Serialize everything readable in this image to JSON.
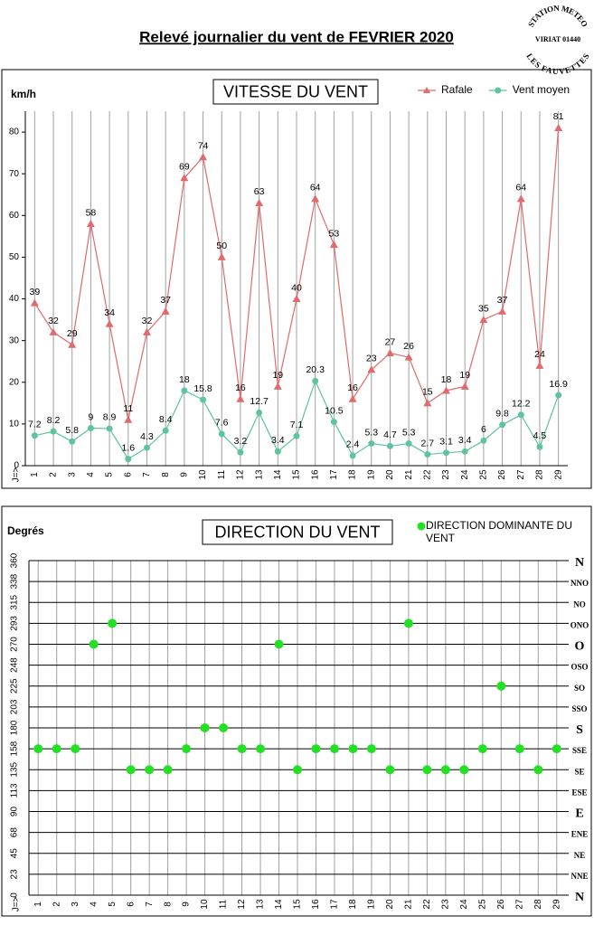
{
  "header": {
    "title": "Relevé journalier du vent de FEVRIER 2020",
    "stamp": [
      "STATION METEO",
      "VIRIAT 01440",
      "LES FAUVETTES"
    ]
  },
  "chart_data": [
    {
      "type": "line",
      "title": "VITESSE DU VENT",
      "ylabel": "km/h",
      "xlabel": "J=>",
      "categories": [
        "1",
        "2",
        "3",
        "4",
        "5",
        "6",
        "7",
        "8",
        "9",
        "10",
        "11",
        "12",
        "13",
        "14",
        "15",
        "16",
        "17",
        "18",
        "19",
        "20",
        "21",
        "22",
        "23",
        "24",
        "25",
        "26",
        "27",
        "28",
        "29"
      ],
      "series": [
        {
          "name": "Rafale",
          "color": "#e06a6c",
          "marker": "triangle",
          "values": [
            39,
            32,
            29,
            58,
            34,
            11,
            32,
            37,
            69,
            74,
            50,
            16,
            63,
            19,
            40,
            64,
            53,
            16,
            23,
            27,
            26,
            15,
            18,
            19,
            35,
            37,
            64,
            24,
            81
          ]
        },
        {
          "name": "Vent moyen",
          "color": "#5ec49c",
          "marker": "circle",
          "values": [
            7.2,
            8.2,
            5.8,
            9,
            8.9,
            1.6,
            4.3,
            8.4,
            18,
            15.8,
            7.6,
            3.2,
            12.7,
            3.4,
            7.1,
            20.3,
            10.5,
            2.4,
            5.3,
            4.7,
            5.3,
            2.7,
            3.1,
            3.4,
            6,
            9.8,
            12.2,
            4.5,
            16.9
          ]
        }
      ],
      "ylim": [
        0,
        85
      ],
      "yticks": [
        0,
        10,
        20,
        30,
        40,
        50,
        60,
        70,
        80
      ],
      "grid": false
    },
    {
      "type": "scatter",
      "title": "DIRECTION DU VENT",
      "ylabel": "Degrés",
      "xlabel": "J=>",
      "categories": [
        "1",
        "2",
        "3",
        "4",
        "5",
        "6",
        "7",
        "8",
        "9",
        "10",
        "11",
        "12",
        "13",
        "14",
        "15",
        "16",
        "17",
        "18",
        "19",
        "20",
        "21",
        "22",
        "23",
        "24",
        "25",
        "26",
        "27",
        "28",
        "29"
      ],
      "series": [
        {
          "name": "DIRECTION DOMINANTE DU VENT",
          "color": "#22e022",
          "values": [
            157.5,
            157.5,
            157.5,
            270,
            292.5,
            135,
            135,
            135,
            157.5,
            180,
            180,
            157.5,
            157.5,
            270,
            135,
            157.5,
            157.5,
            157.5,
            157.5,
            135,
            292.5,
            135,
            135,
            135,
            157.5,
            225,
            157.5,
            135,
            157.5
          ]
        }
      ],
      "ylim": [
        0,
        360
      ],
      "yticks": [
        0,
        {
          "value": 22.5,
          "label": "23"
        },
        45,
        {
          "value": 67.5,
          "label": "68"
        },
        90,
        {
          "value": 112.5,
          "label": "113"
        },
        135,
        {
          "value": 157.5,
          "label": "158"
        },
        180,
        {
          "value": 202.5,
          "label": "203"
        },
        225,
        {
          "value": 247.5,
          "label": "248"
        },
        270,
        {
          "value": 292.5,
          "label": "293"
        },
        315,
        {
          "value": 337.5,
          "label": "338"
        },
        360
      ],
      "y2lim": [
        0,
        360
      ],
      "y2ticks": [
        {
          "value": 0,
          "label": "N"
        },
        {
          "value": 22.5,
          "label": "NNE"
        },
        {
          "value": 45,
          "label": "NE"
        },
        {
          "value": 67.5,
          "label": "ENE"
        },
        {
          "value": 90,
          "label": "E"
        },
        {
          "value": 112.5,
          "label": "ESE"
        },
        {
          "value": 135,
          "label": "SE"
        },
        {
          "value": 157.5,
          "label": "SSE"
        },
        {
          "value": 180,
          "label": "S"
        },
        {
          "value": 202.5,
          "label": "SSO"
        },
        {
          "value": 225,
          "label": "SO"
        },
        {
          "value": 247.5,
          "label": "OSO"
        },
        {
          "value": 270,
          "label": "O"
        },
        {
          "value": 292.5,
          "label": "ONO"
        },
        {
          "value": 315,
          "label": "NO"
        },
        {
          "value": 337.5,
          "label": "NNO"
        },
        {
          "value": 360,
          "label": "N"
        }
      ],
      "grid": true
    }
  ]
}
